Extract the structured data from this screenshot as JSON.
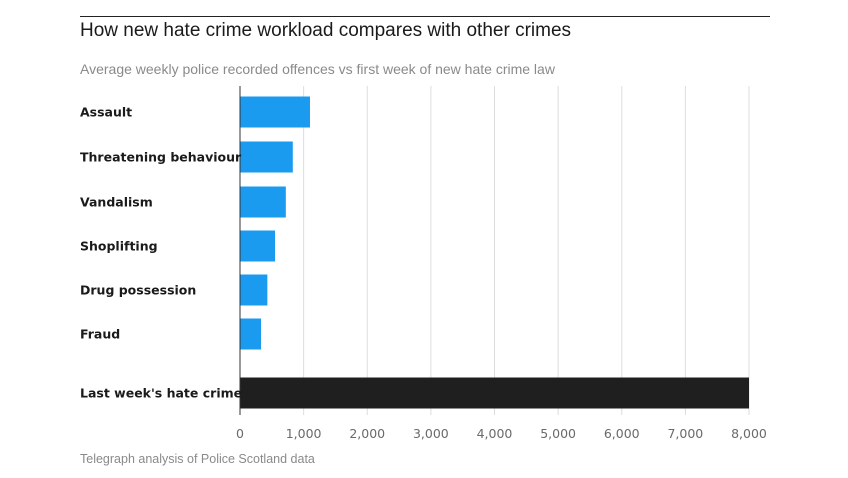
{
  "chart_data": {
    "type": "bar",
    "orientation": "horizontal",
    "title": "How new hate crime workload compares with other crimes",
    "subtitle": "Average weekly police recorded offences vs first week of new hate crime law",
    "source": "Telegraph analysis of Police Scotland data",
    "categories": [
      "Assault",
      "Threatening behaviour",
      "Vandalism",
      "Shoplifting",
      "Drug possession",
      "Fraud",
      "Last week's hate crime"
    ],
    "values": [
      1100,
      830,
      720,
      550,
      430,
      330,
      8000
    ],
    "colors": [
      "#1a9bf0",
      "#1a9bf0",
      "#1a9bf0",
      "#1a9bf0",
      "#1a9bf0",
      "#1a9bf0",
      "#1f1f1f"
    ],
    "xlim": [
      0,
      8000
    ],
    "xticks": [
      0,
      1000,
      2000,
      3000,
      4000,
      5000,
      6000,
      7000,
      8000
    ],
    "xtick_labels": [
      "0",
      "1,000",
      "2,000",
      "3,000",
      "4,000",
      "5,000",
      "6,000",
      "7,000",
      "8,000"
    ],
    "grid": "vertical",
    "legend": "none"
  }
}
